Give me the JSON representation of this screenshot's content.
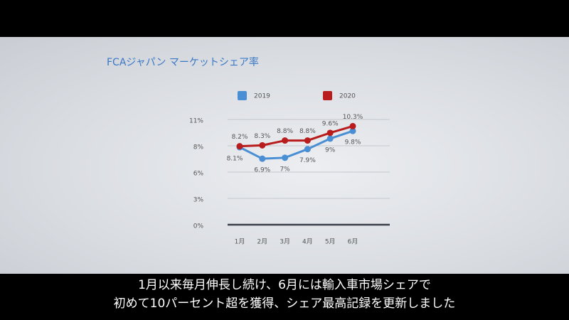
{
  "chart_data": {
    "type": "line",
    "title": "FCAジャパン マーケットシェア率",
    "categories": [
      "1月",
      "2月",
      "3月",
      "4月",
      "5月",
      "6月"
    ],
    "series": [
      {
        "name": "2019",
        "color": "#4a8fd4",
        "values": [
          8.1,
          6.9,
          7,
          7.9,
          9,
          9.8
        ],
        "value_labels": [
          "8.1%",
          "6.9%",
          "7%",
          "7.9%",
          "9%",
          "9.8%"
        ]
      },
      {
        "name": "2020",
        "color": "#b81c1c",
        "values": [
          8.2,
          8.3,
          8.8,
          8.8,
          9.6,
          10.3
        ],
        "value_labels": [
          "8.2%",
          "8.3%",
          "8.8%",
          "8.8%",
          "9.6%",
          "10.3%"
        ]
      }
    ],
    "ylim": [
      0,
      11
    ],
    "yticks": [
      {
        "value": 0,
        "label": "0%"
      },
      {
        "value": 2.75,
        "label": "3%"
      },
      {
        "value": 5.5,
        "label": "6%"
      },
      {
        "value": 8.25,
        "label": "8%"
      },
      {
        "value": 11,
        "label": "11%"
      }
    ],
    "grid": true
  },
  "caption": [
    "1月以来毎月伸長し続け、6月には輸入車市場シェアで",
    "初めて10パーセント超を獲得、シェア最高記録を更新しました"
  ]
}
